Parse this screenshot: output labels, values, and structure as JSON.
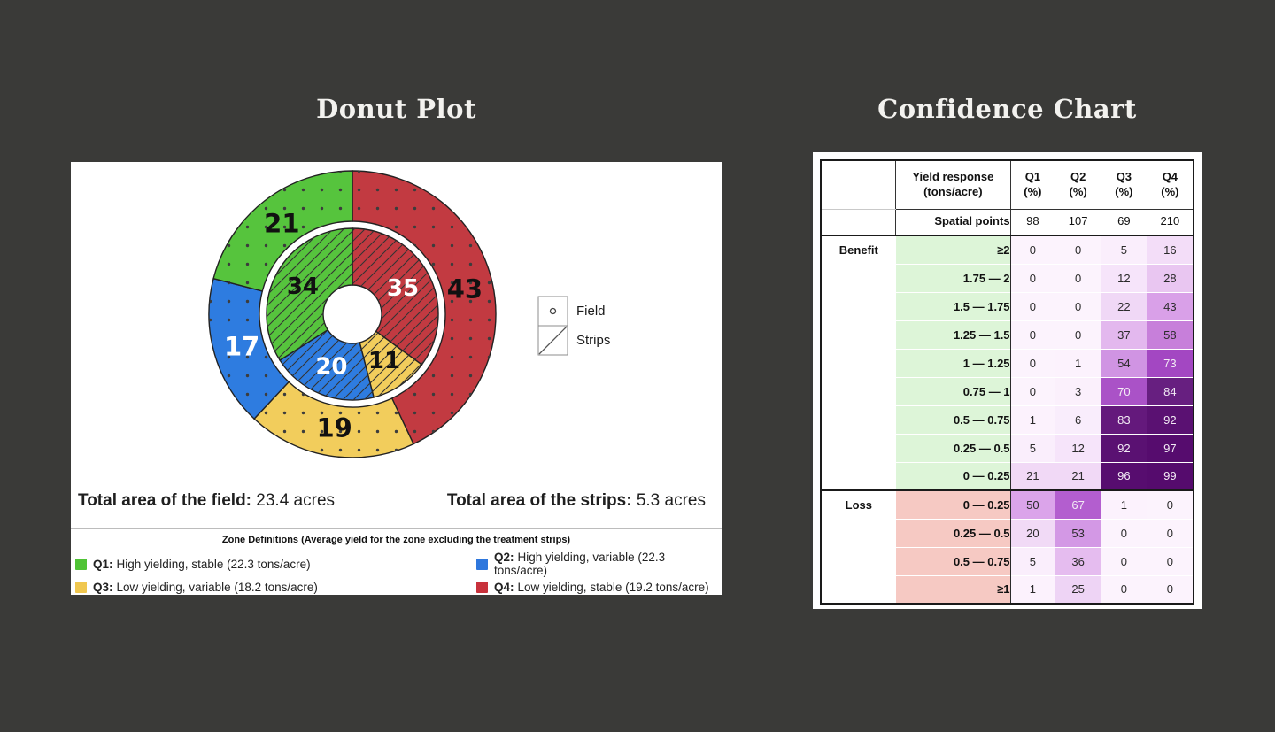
{
  "page": {
    "background": "#3a3a38"
  },
  "left_panel": {
    "title": "Donut Plot",
    "totals": {
      "field_label": "Total area of the field:",
      "field_value": " 23.4 acres",
      "strips_label": "Total area of the strips:",
      "strips_value": " 5.3 acres"
    },
    "pattern_legend": [
      {
        "name": "Field",
        "pattern": "dots"
      },
      {
        "name": "Strips",
        "pattern": "hatch"
      }
    ],
    "zone_definitions": {
      "title": "Zone Definitions (Average yield for the zone excluding the treatment strips)",
      "items": [
        {
          "label": "Q1:",
          "text": "High yielding, stable (22.3 tons/acre)",
          "color": "#4fc335"
        },
        {
          "label": "Q2:",
          "text": "High yielding, variable (22.3 tons/acre)",
          "color": "#2e77dd"
        },
        {
          "label": "Q3:",
          "text": "Low yielding, variable (18.2 tons/acre)",
          "color": "#f0c74f"
        },
        {
          "label": "Q4:",
          "text": "Low yielding, stable (19.2 tons/acre)",
          "color": "#c8323c"
        }
      ]
    }
  },
  "right_panel": {
    "title": "Confidence Chart"
  },
  "chart_data": [
    {
      "type": "donut",
      "title": "Donut Plot",
      "start_angle_deg": 0,
      "direction": "clockwise",
      "rings": [
        {
          "name": "Field",
          "position": "outer",
          "pattern": "dots",
          "segments": [
            {
              "zone": "Q4",
              "value": 43,
              "color": "#c23a41",
              "label_color": "#111111"
            },
            {
              "zone": "Q3",
              "value": 19,
              "color": "#f2cd5c",
              "label_color": "#111111"
            },
            {
              "zone": "Q2",
              "value": 17,
              "color": "#2e7ce0",
              "label_color": "#ffffff"
            },
            {
              "zone": "Q1",
              "value": 21,
              "color": "#56c43d",
              "label_color": "#111111"
            }
          ]
        },
        {
          "name": "Strips",
          "position": "inner",
          "pattern": "hatch",
          "segments": [
            {
              "zone": "Q4",
              "value": 35,
              "color": "#c23a41",
              "label_color": "#ffffff"
            },
            {
              "zone": "Q3",
              "value": 11,
              "color": "#f2cd5c",
              "label_color": "#111111"
            },
            {
              "zone": "Q2",
              "value": 20,
              "color": "#2e7ce0",
              "label_color": "#ffffff"
            },
            {
              "zone": "Q1",
              "value": 34,
              "color": "#56c43d",
              "label_color": "#111111"
            }
          ]
        }
      ],
      "total_field_acres": 23.4,
      "total_strips_acres": 5.3
    },
    {
      "type": "heatmap",
      "title": "Confidence Chart",
      "corner_header": "Yield response\n(tons/acre)",
      "columns": [
        "Q1\n(%)",
        "Q2\n(%)",
        "Q3\n(%)",
        "Q4\n(%)"
      ],
      "spatial_points_label": "Spatial points",
      "spatial_points": [
        98,
        107,
        69,
        210
      ],
      "sections": [
        {
          "name": "Benefit",
          "label_bg": "#ddf5d8",
          "rows": [
            {
              "range": "≥2",
              "values": [
                0,
                0,
                5,
                16
              ]
            },
            {
              "range": "1.75 — 2",
              "values": [
                0,
                0,
                12,
                28
              ]
            },
            {
              "range": "1.5 — 1.75",
              "values": [
                0,
                0,
                22,
                43
              ]
            },
            {
              "range": "1.25 — 1.5",
              "values": [
                0,
                0,
                37,
                58
              ]
            },
            {
              "range": "1 — 1.25",
              "values": [
                0,
                1,
                54,
                73
              ]
            },
            {
              "range": "0.75 — 1",
              "values": [
                0,
                3,
                70,
                84
              ]
            },
            {
              "range": "0.5 — 0.75",
              "values": [
                1,
                6,
                83,
                92
              ]
            },
            {
              "range": "0.25 — 0.5",
              "values": [
                5,
                12,
                92,
                97
              ]
            },
            {
              "range": "0 — 0.25",
              "values": [
                21,
                21,
                96,
                99
              ]
            }
          ]
        },
        {
          "name": "Loss",
          "label_bg": "#f6c9c3",
          "rows": [
            {
              "range": "0 — 0.25",
              "values": [
                50,
                67,
                1,
                0
              ]
            },
            {
              "range": "0.25 — 0.5",
              "values": [
                20,
                53,
                0,
                0
              ]
            },
            {
              "range": "0.5 — 0.75",
              "values": [
                5,
                36,
                0,
                0
              ]
            },
            {
              "range": "≥1",
              "values": [
                1,
                25,
                0,
                0
              ]
            }
          ]
        }
      ],
      "colormap_anchors": [
        [
          0,
          "#fcf3fd"
        ],
        [
          5,
          "#faeefc"
        ],
        [
          12,
          "#f6e4fa"
        ],
        [
          16,
          "#f3ddf8"
        ],
        [
          21,
          "#f1d9f6"
        ],
        [
          25,
          "#eed4f5"
        ],
        [
          28,
          "#e9c6f1"
        ],
        [
          36,
          "#e5bcef"
        ],
        [
          43,
          "#d9a0e8"
        ],
        [
          50,
          "#dba4ea"
        ],
        [
          54,
          "#d094e3"
        ],
        [
          58,
          "#c77fda"
        ],
        [
          67,
          "#b35ecf"
        ],
        [
          70,
          "#aa52c7"
        ],
        [
          73,
          "#a347c2"
        ],
        [
          83,
          "#64197c"
        ],
        [
          84,
          "#671f80"
        ],
        [
          92,
          "#5a1172"
        ],
        [
          96,
          "#570d6f"
        ],
        [
          99,
          "#550b6d"
        ],
        [
          100,
          "#540a6c"
        ]
      ],
      "white_text_threshold": 62,
      "value_text_dark": "#2b2b2b",
      "value_text_light": "#f3ecf5"
    }
  ]
}
